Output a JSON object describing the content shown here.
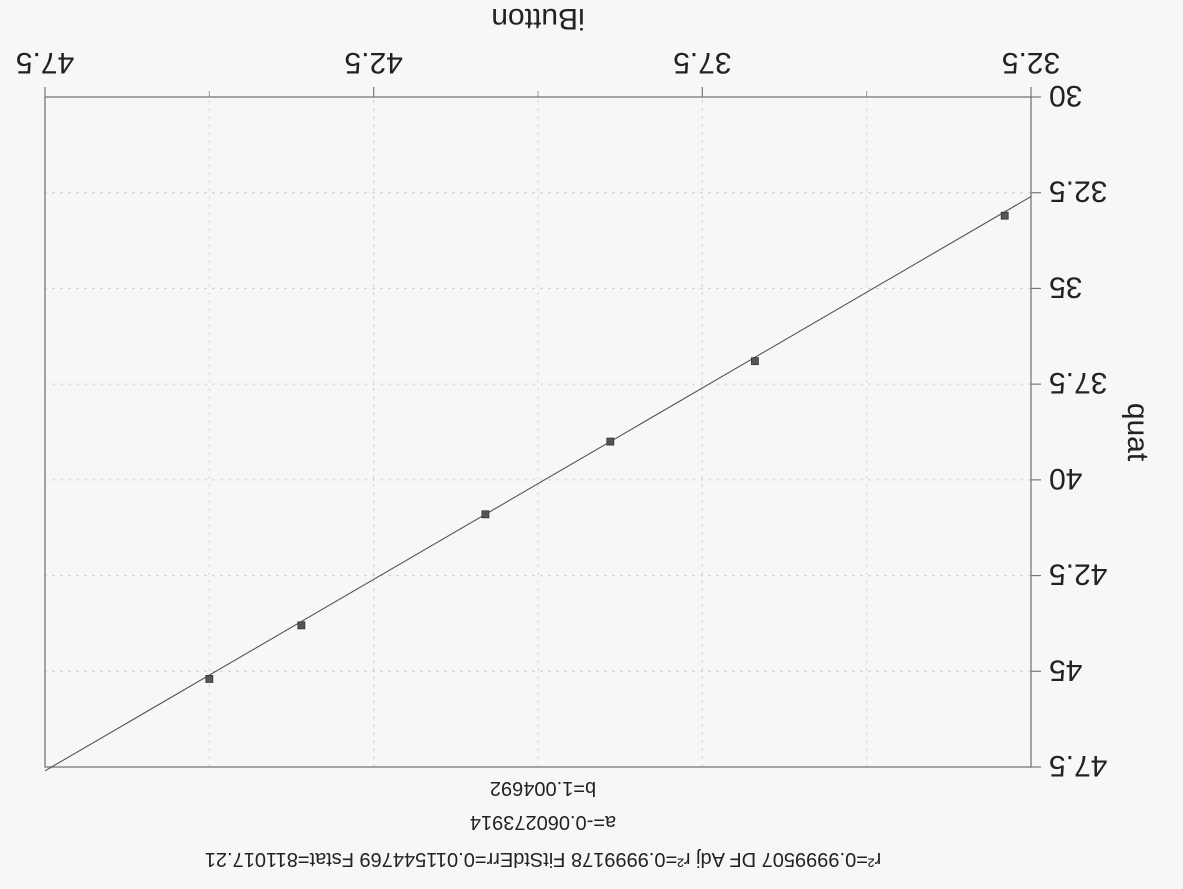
{
  "chart_data": {
    "type": "scatter",
    "xlabel": "iButton",
    "ylabel": "quat",
    "xlim": [
      32.5,
      47.5
    ],
    "ylim": [
      30,
      47.5
    ],
    "x_ticks": [
      "32.5",
      "37.5",
      "42.5",
      "47.5"
    ],
    "y_ticks": [
      "30",
      "32.5",
      "35",
      "37.5",
      "40",
      "42.5",
      "45",
      "47.5"
    ],
    "grid": true,
    "points": [
      {
        "x": 32.9,
        "y": 33.1
      },
      {
        "x": 36.7,
        "y": 36.9
      },
      {
        "x": 38.9,
        "y": 39.0
      },
      {
        "x": 40.8,
        "y": 40.9
      },
      {
        "x": 43.6,
        "y": 43.8
      },
      {
        "x": 45.0,
        "y": 45.2
      }
    ],
    "fit_line": {
      "x": [
        32.5,
        47.5
      ],
      "y": [
        32.6,
        47.6
      ]
    },
    "stats": {
      "b": "b=1.004692",
      "a": "a=-0.060273914",
      "summary": "r²=0.9999507 DF Adj r²=0.9999178 FitStdErr=0.011544769 Fstat=811017.21"
    }
  }
}
